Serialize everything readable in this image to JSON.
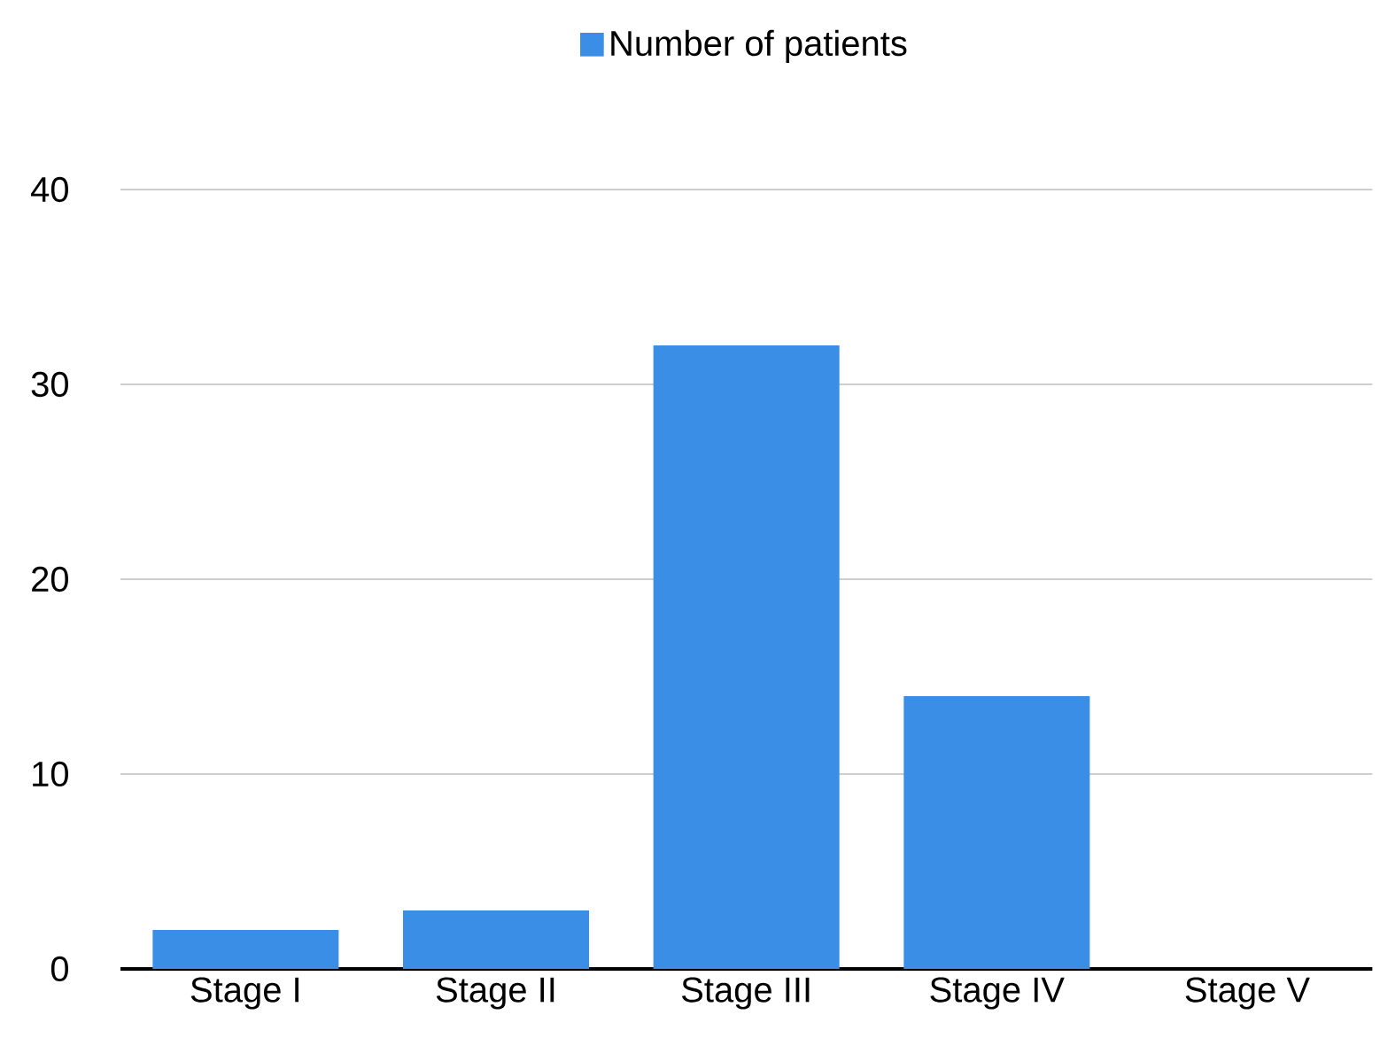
{
  "chart_data": {
    "type": "bar",
    "categories": [
      "Stage I",
      "Stage II",
      "Stage III",
      "Stage IV",
      "Stage V"
    ],
    "series": [
      {
        "name": "Number of patients",
        "color": "#3a8ee6",
        "values": [
          2,
          3,
          32,
          14,
          0
        ]
      }
    ],
    "ylim": [
      0,
      40
    ],
    "yticks": [
      0,
      10,
      20,
      30,
      40
    ],
    "grid": "y",
    "legend": "top"
  }
}
